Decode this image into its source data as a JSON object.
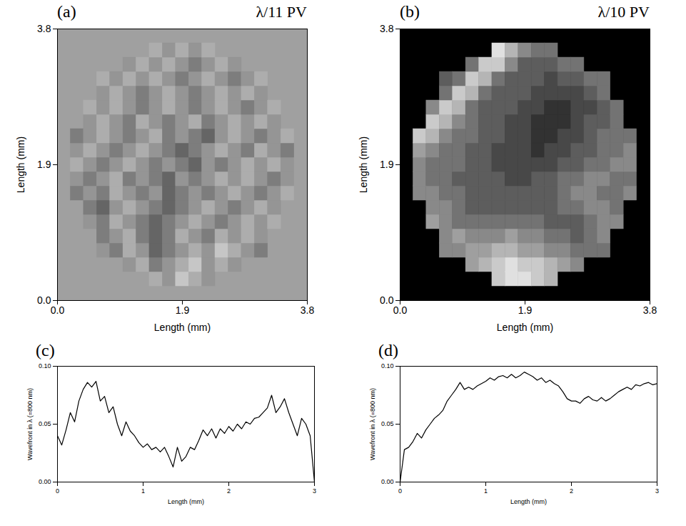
{
  "chart_data": [
    {
      "type": "heatmap",
      "title": "(a)",
      "annotations": [
        "λ/11 PV"
      ],
      "x_label": "Length (mm)",
      "y_label": "Length (mm)",
      "xlim": [
        0,
        3.8
      ],
      "ylim": [
        0,
        3.8
      ],
      "xticks": [
        {
          "value": 0,
          "label": "0.0"
        },
        1.9,
        3.8
      ],
      "yticks": [
        {
          "value": 0,
          "label": "0.0"
        },
        1.9,
        3.8
      ],
      "color": "#a0a0a0",
      "color_range": [
        0,
        0.09
      ],
      "x_bins": [
        0,
        0.2,
        0.4,
        0.6,
        0.8,
        1,
        1.2,
        1.4,
        1.6,
        1.8,
        2,
        2.2,
        2.4,
        2.6,
        2.8,
        3,
        3.2,
        3.4,
        3.6,
        3.8
      ],
      "y_bins": [
        0,
        0.2,
        0.4,
        0.6,
        0.8,
        1,
        1.2,
        1.4,
        1.6,
        1.8,
        2,
        2.2,
        2.4,
        2.6,
        2.8,
        3,
        3.2,
        3.4,
        3.6,
        3.8
      ],
      "cells": [
        [
          null,
          null,
          null,
          null,
          null,
          null,
          null,
          null,
          null,
          null,
          null,
          null,
          null,
          null,
          null,
          null,
          null,
          null,
          null
        ],
        [
          null,
          null,
          null,
          null,
          null,
          null,
          null,
          0.06,
          0.05,
          0.07,
          0.06,
          0.05,
          null,
          null,
          null,
          null,
          null,
          null,
          null
        ],
        [
          null,
          null,
          null,
          null,
          null,
          0.05,
          0.06,
          0.04,
          0.05,
          0.06,
          0.07,
          0.05,
          0.06,
          0.05,
          null,
          null,
          null,
          null,
          null
        ],
        [
          null,
          null,
          null,
          0.05,
          0.04,
          0.06,
          0.05,
          0.03,
          0.04,
          0.05,
          0.06,
          0.05,
          0.07,
          0.06,
          0.05,
          0.04,
          null,
          null,
          null
        ],
        [
          null,
          null,
          null,
          0.04,
          0.05,
          0.06,
          0.04,
          0.03,
          0.04,
          0.06,
          0.05,
          0.04,
          0.06,
          0.05,
          0.06,
          0.05,
          null,
          null,
          null
        ],
        [
          null,
          null,
          0.05,
          0.04,
          0.06,
          0.05,
          0.04,
          0.03,
          0.04,
          0.05,
          0.06,
          0.05,
          0.04,
          0.05,
          0.06,
          0.05,
          0.06,
          null,
          null
        ],
        [
          null,
          null,
          0.04,
          0.03,
          0.05,
          0.06,
          0.05,
          0.04,
          0.03,
          0.04,
          0.05,
          0.06,
          0.05,
          0.04,
          0.05,
          0.06,
          0.05,
          null,
          null
        ],
        [
          null,
          0.04,
          0.05,
          0.04,
          0.06,
          0.05,
          0.04,
          0.05,
          0.03,
          0.04,
          0.05,
          0.04,
          0.05,
          0.06,
          0.05,
          0.04,
          0.05,
          0.06,
          null
        ],
        [
          null,
          0.05,
          0.04,
          0.05,
          0.06,
          0.04,
          0.05,
          0.04,
          0.03,
          0.05,
          0.04,
          0.05,
          0.06,
          0.05,
          0.06,
          0.05,
          0.04,
          0.05,
          null
        ],
        [
          null,
          0.06,
          0.05,
          0.04,
          0.05,
          0.06,
          0.05,
          0.04,
          0.05,
          0.04,
          0.03,
          0.05,
          0.04,
          0.05,
          0.06,
          0.05,
          0.06,
          0.05,
          null
        ],
        [
          null,
          0.05,
          0.06,
          0.05,
          0.04,
          0.05,
          0.06,
          0.05,
          0.04,
          0.03,
          0.04,
          0.05,
          0.06,
          0.05,
          0.04,
          0.06,
          0.05,
          0.04,
          null
        ],
        [
          null,
          0.04,
          0.05,
          0.06,
          0.05,
          0.04,
          0.05,
          0.06,
          0.04,
          0.05,
          0.04,
          0.03,
          0.05,
          0.06,
          0.05,
          0.04,
          0.05,
          0.06,
          null
        ],
        [
          null,
          null,
          0.05,
          0.06,
          0.05,
          0.04,
          0.06,
          0.05,
          0.04,
          0.05,
          0.06,
          0.04,
          0.05,
          0.06,
          0.05,
          0.06,
          0.05,
          null,
          null
        ],
        [
          null,
          null,
          0.06,
          0.05,
          0.06,
          0.05,
          0.04,
          0.05,
          0.06,
          0.05,
          0.04,
          0.05,
          0.06,
          0.05,
          0.04,
          0.05,
          0.06,
          null,
          null
        ],
        [
          null,
          null,
          null,
          0.05,
          0.06,
          0.05,
          0.04,
          0.05,
          0.06,
          0.05,
          0.04,
          0.05,
          0.06,
          0.05,
          0.06,
          0.05,
          null,
          null,
          null
        ],
        [
          null,
          null,
          null,
          0.06,
          0.05,
          0.06,
          0.05,
          0.06,
          0.05,
          0.04,
          0.05,
          0.06,
          0.05,
          0.04,
          0.05,
          0.06,
          null,
          null,
          null
        ],
        [
          null,
          null,
          null,
          null,
          null,
          0.05,
          0.06,
          0.05,
          0.06,
          0.05,
          0.04,
          0.05,
          0.06,
          0.05,
          null,
          null,
          null,
          null,
          null
        ],
        [
          null,
          null,
          null,
          null,
          null,
          null,
          null,
          0.06,
          0.05,
          0.06,
          0.05,
          0.06,
          null,
          null,
          null,
          null,
          null,
          null,
          null
        ],
        [
          null,
          null,
          null,
          null,
          null,
          null,
          null,
          null,
          null,
          null,
          null,
          null,
          null,
          null,
          null,
          null,
          null,
          null,
          null
        ]
      ]
    },
    {
      "type": "heatmap",
      "title": "(b)",
      "annotations": [
        "λ/10 PV"
      ],
      "x_label": "Length (mm)",
      "y_label": "Length (mm)",
      "xlim": [
        0,
        3.8
      ],
      "ylim": [
        0,
        3.8
      ],
      "xticks": [
        {
          "value": 0,
          "label": "0.0"
        },
        1.9,
        3.8
      ],
      "yticks": [
        {
          "value": 0,
          "label": "0.0"
        },
        1.9,
        3.8
      ],
      "color": "#000000",
      "color_range": [
        0,
        0.1
      ],
      "x_bins": [
        0,
        0.2,
        0.4,
        0.6,
        0.8,
        1,
        1.2,
        1.4,
        1.6,
        1.8,
        2,
        2.2,
        2.4,
        2.6,
        2.8,
        3,
        3.2,
        3.4,
        3.6,
        3.8
      ],
      "y_bins": [
        0,
        0.2,
        0.4,
        0.6,
        0.8,
        1,
        1.2,
        1.4,
        1.6,
        1.8,
        2,
        2.2,
        2.4,
        2.6,
        2.8,
        3,
        3.2,
        3.4,
        3.6,
        3.8
      ],
      "cells": [
        [
          null,
          null,
          null,
          null,
          null,
          null,
          null,
          null,
          null,
          null,
          null,
          null,
          null,
          null,
          null,
          null,
          null,
          null,
          null
        ],
        [
          null,
          null,
          null,
          null,
          null,
          null,
          null,
          0.08,
          0.09,
          0.09,
          0.08,
          0.07,
          null,
          null,
          null,
          null,
          null,
          null,
          null
        ],
        [
          null,
          null,
          null,
          null,
          null,
          0.06,
          0.07,
          0.08,
          0.09,
          0.08,
          0.08,
          0.07,
          0.06,
          0.05,
          null,
          null,
          null,
          null,
          null
        ],
        [
          null,
          null,
          null,
          0.05,
          0.05,
          0.06,
          0.06,
          0.07,
          0.07,
          0.06,
          0.06,
          0.05,
          0.05,
          0.04,
          0.04,
          0.04,
          null,
          null,
          null
        ],
        [
          null,
          null,
          null,
          0.05,
          0.06,
          0.05,
          0.05,
          0.05,
          0.06,
          0.05,
          0.05,
          0.04,
          0.04,
          0.03,
          0.04,
          0.05,
          null,
          null,
          null
        ],
        [
          null,
          null,
          0.06,
          0.05,
          0.04,
          0.04,
          0.04,
          0.04,
          0.04,
          0.04,
          0.04,
          0.03,
          0.03,
          0.03,
          0.04,
          0.05,
          0.05,
          null,
          null
        ],
        [
          null,
          null,
          0.05,
          0.05,
          0.04,
          0.03,
          0.03,
          0.03,
          0.03,
          0.03,
          0.03,
          0.03,
          0.04,
          0.04,
          0.05,
          0.05,
          0.04,
          null,
          null
        ],
        [
          null,
          0.05,
          0.05,
          0.04,
          0.04,
          0.03,
          0.03,
          0.03,
          0.03,
          0.03,
          0.03,
          0.03,
          0.04,
          0.05,
          0.05,
          0.04,
          0.04,
          0.05,
          null
        ],
        [
          null,
          0.05,
          0.04,
          0.04,
          0.03,
          0.03,
          0.03,
          0.03,
          0.02,
          0.02,
          0.03,
          0.03,
          0.04,
          0.04,
          0.05,
          0.05,
          0.04,
          0.04,
          null
        ],
        [
          null,
          0.05,
          0.04,
          0.04,
          0.04,
          0.03,
          0.03,
          0.02,
          0.02,
          0.02,
          0.02,
          0.02,
          0.03,
          0.03,
          0.04,
          0.04,
          0.05,
          0.05,
          null
        ],
        [
          null,
          0.06,
          0.05,
          0.04,
          0.04,
          0.03,
          0.03,
          0.02,
          0.02,
          0.02,
          0.01,
          0.02,
          0.02,
          0.03,
          0.03,
          0.04,
          0.04,
          0.05,
          null
        ],
        [
          null,
          0.08,
          0.07,
          0.05,
          0.04,
          0.04,
          0.03,
          0.03,
          0.02,
          0.02,
          0.01,
          0.01,
          0.02,
          0.02,
          0.03,
          0.04,
          0.04,
          0.04,
          null
        ],
        [
          null,
          null,
          0.08,
          0.07,
          0.05,
          0.04,
          0.03,
          0.03,
          0.02,
          0.02,
          0.01,
          0.01,
          0.01,
          0.02,
          0.03,
          0.03,
          0.04,
          null,
          null
        ],
        [
          null,
          null,
          0.05,
          0.08,
          0.07,
          0.04,
          0.03,
          0.03,
          0.03,
          0.02,
          0.02,
          0.01,
          0.01,
          0.02,
          0.02,
          0.03,
          0.04,
          null,
          null
        ],
        [
          null,
          null,
          null,
          0.04,
          0.08,
          0.07,
          0.04,
          0.03,
          0.03,
          0.03,
          0.02,
          0.02,
          0.02,
          0.02,
          0.03,
          0.04,
          null,
          null,
          null
        ],
        [
          null,
          null,
          null,
          0.03,
          0.04,
          0.08,
          0.07,
          0.04,
          0.03,
          0.03,
          0.03,
          0.02,
          0.03,
          0.03,
          0.04,
          0.04,
          null,
          null,
          null
        ],
        [
          null,
          null,
          null,
          null,
          null,
          0.04,
          0.08,
          0.08,
          0.05,
          0.03,
          0.03,
          0.03,
          0.04,
          0.04,
          null,
          null,
          null,
          null,
          null
        ],
        [
          null,
          null,
          null,
          null,
          null,
          null,
          null,
          0.09,
          0.07,
          0.05,
          0.04,
          0.04,
          null,
          null,
          null,
          null,
          null,
          null,
          null
        ],
        [
          null,
          null,
          null,
          null,
          null,
          null,
          null,
          null,
          null,
          null,
          null,
          null,
          null,
          null,
          null,
          null,
          null,
          null,
          null
        ]
      ]
    },
    {
      "type": "line",
      "title": "(c)",
      "x_label": "Length (mm)",
      "y_label": "Wavefront in λ (=800 nm)",
      "xlim": [
        0,
        3
      ],
      "ylim": [
        0,
        0.1
      ],
      "xticks": [
        0,
        1,
        2,
        3
      ],
      "yticks": [
        {
          "value": 0,
          "label": "0.00"
        },
        {
          "value": 0.05,
          "label": "0.05"
        },
        {
          "value": 0.1,
          "label": "0.10"
        }
      ],
      "color": "#000000",
      "x": [
        0,
        0.05,
        0.1,
        0.15,
        0.2,
        0.25,
        0.3,
        0.35,
        0.4,
        0.45,
        0.5,
        0.55,
        0.6,
        0.65,
        0.7,
        0.75,
        0.8,
        0.85,
        0.9,
        0.95,
        1,
        1.05,
        1.1,
        1.15,
        1.2,
        1.25,
        1.3,
        1.35,
        1.4,
        1.45,
        1.5,
        1.55,
        1.6,
        1.65,
        1.7,
        1.75,
        1.8,
        1.85,
        1.9,
        1.95,
        2,
        2.05,
        2.1,
        2.15,
        2.2,
        2.25,
        2.3,
        2.35,
        2.4,
        2.45,
        2.5,
        2.55,
        2.6,
        2.65,
        2.7,
        2.75,
        2.8,
        2.85,
        2.9,
        2.95,
        3
      ],
      "values": [
        0.04,
        0.032,
        0.045,
        0.06,
        0.052,
        0.07,
        0.08,
        0.086,
        0.082,
        0.087,
        0.07,
        0.074,
        0.06,
        0.065,
        0.05,
        0.04,
        0.052,
        0.044,
        0.04,
        0.034,
        0.03,
        0.033,
        0.028,
        0.03,
        0.026,
        0.03,
        0.022,
        0.013,
        0.03,
        0.018,
        0.022,
        0.03,
        0.028,
        0.036,
        0.045,
        0.04,
        0.046,
        0.038,
        0.046,
        0.042,
        0.048,
        0.044,
        0.05,
        0.046,
        0.052,
        0.05,
        0.055,
        0.056,
        0.06,
        0.064,
        0.075,
        0.06,
        0.065,
        0.072,
        0.06,
        0.05,
        0.04,
        0.055,
        0.05,
        0.04,
        0.0
      ]
    },
    {
      "type": "line",
      "title": "(d)",
      "x_label": "Length (mm)",
      "y_label": "Wavefront in λ (=800 nm)",
      "xlim": [
        0,
        3
      ],
      "ylim": [
        0,
        0.1
      ],
      "xticks": [
        0,
        1,
        2,
        3
      ],
      "yticks": [
        {
          "value": 0,
          "label": "0.00"
        },
        {
          "value": 0.05,
          "label": "0.05"
        },
        {
          "value": 0.1,
          "label": "0.10"
        }
      ],
      "color": "#000000",
      "x": [
        0,
        0.05,
        0.1,
        0.15,
        0.2,
        0.25,
        0.3,
        0.35,
        0.4,
        0.45,
        0.5,
        0.55,
        0.6,
        0.65,
        0.7,
        0.75,
        0.8,
        0.85,
        0.9,
        0.95,
        1,
        1.05,
        1.1,
        1.15,
        1.2,
        1.25,
        1.3,
        1.35,
        1.4,
        1.45,
        1.5,
        1.55,
        1.6,
        1.65,
        1.7,
        1.75,
        1.8,
        1.85,
        1.9,
        1.95,
        2,
        2.05,
        2.1,
        2.15,
        2.2,
        2.25,
        2.3,
        2.35,
        2.4,
        2.45,
        2.5,
        2.55,
        2.6,
        2.65,
        2.7,
        2.75,
        2.8,
        2.85,
        2.9,
        2.95,
        3
      ],
      "values": [
        0.0,
        0.028,
        0.03,
        0.035,
        0.042,
        0.038,
        0.045,
        0.05,
        0.055,
        0.058,
        0.062,
        0.07,
        0.075,
        0.08,
        0.086,
        0.08,
        0.082,
        0.08,
        0.083,
        0.085,
        0.087,
        0.09,
        0.088,
        0.091,
        0.092,
        0.09,
        0.093,
        0.09,
        0.092,
        0.095,
        0.093,
        0.091,
        0.088,
        0.09,
        0.086,
        0.088,
        0.085,
        0.083,
        0.078,
        0.072,
        0.07,
        0.07,
        0.068,
        0.072,
        0.074,
        0.071,
        0.07,
        0.073,
        0.07,
        0.072,
        0.075,
        0.078,
        0.08,
        0.082,
        0.08,
        0.084,
        0.083,
        0.085,
        0.086,
        0.084,
        0.085
      ]
    }
  ]
}
